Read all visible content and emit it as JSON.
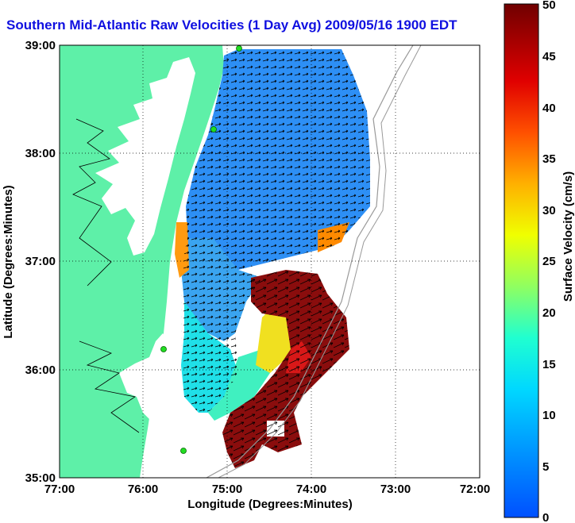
{
  "title": "Southern Mid-Atlantic Raw Velocities (1 Day Avg) 2009/05/16 1900 EDT",
  "xlabel": "Longitude (Degrees:Minutes)",
  "ylabel": "Latitude (Degrees:Minutes)",
  "x_ticks": [
    "77:00",
    "76:00",
    "75:00",
    "74:00",
    "73:00",
    "72:00"
  ],
  "y_ticks": [
    "39:00",
    "38:00",
    "37:00",
    "36:00",
    "35:00"
  ],
  "colorbar": {
    "label": "Surface Velocity (cm/s)",
    "ticks": [
      "0",
      "5",
      "10",
      "15",
      "20",
      "25",
      "30",
      "35",
      "40",
      "45",
      "50"
    ],
    "min": 0,
    "max": 50
  },
  "colors": {
    "land": "#5ef0a8",
    "ocean": "#ffffff",
    "title": "#1010e0",
    "station": "#22dd22"
  },
  "station_icon": "circle-marker-icon"
}
